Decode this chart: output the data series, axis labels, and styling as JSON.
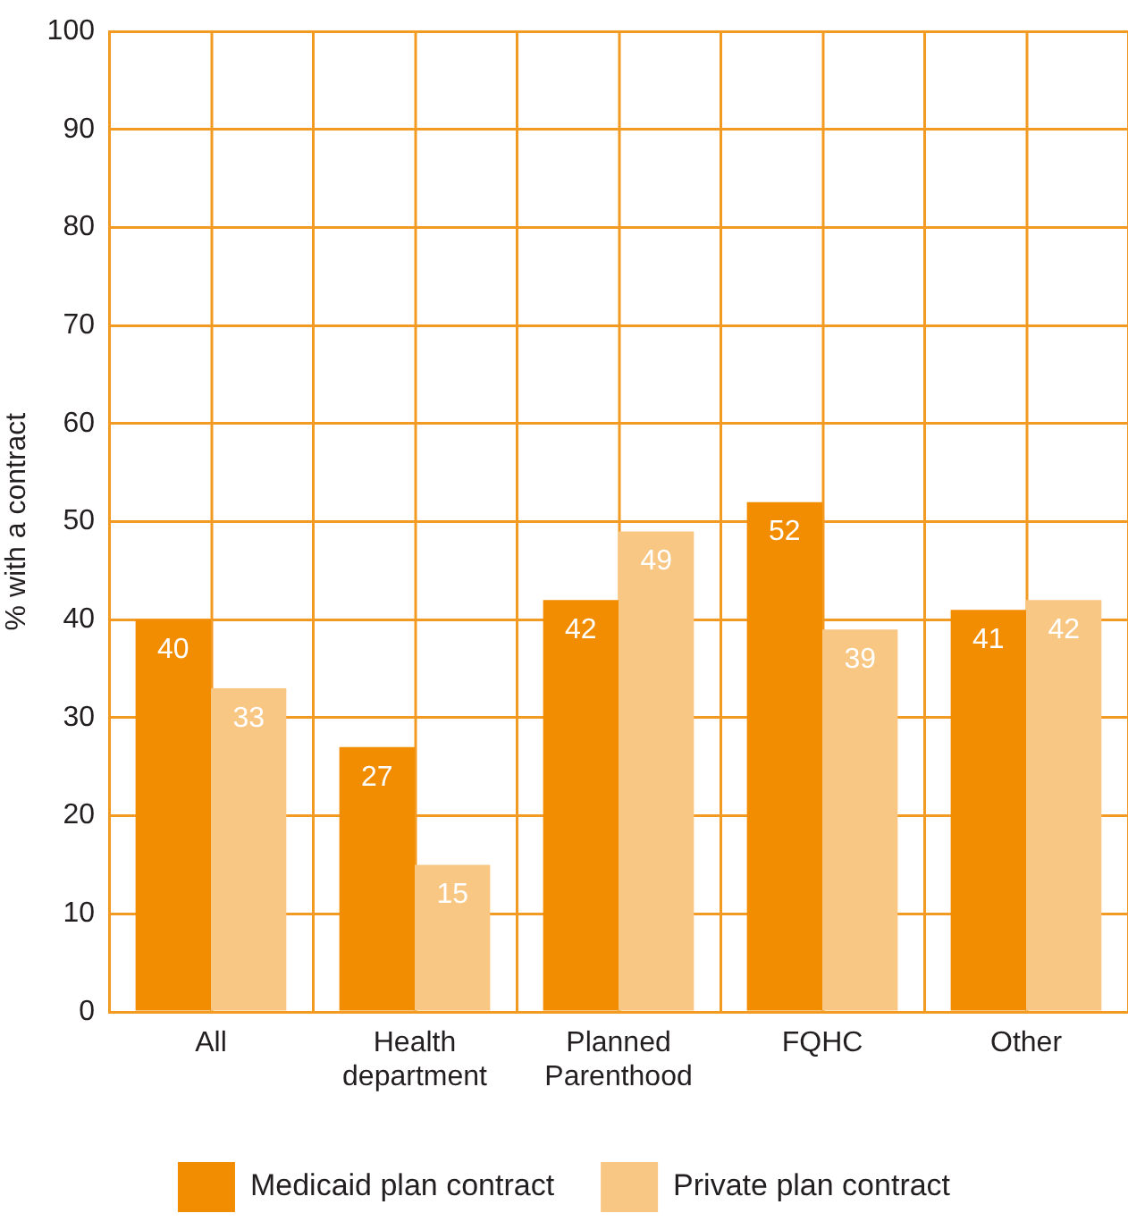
{
  "chart_data": {
    "type": "bar",
    "categories": [
      "All",
      "Health department",
      "Planned Parenthood",
      "FQHC",
      "Other"
    ],
    "series": [
      {
        "name": "Medicaid plan contract",
        "color": "#f28c00",
        "values": [
          40,
          27,
          42,
          52,
          41
        ]
      },
      {
        "name": "Private plan contract",
        "color": "#f9c784",
        "values": [
          33,
          15,
          49,
          39,
          42
        ]
      }
    ],
    "ylabel": "% with a contract",
    "ylim": [
      0,
      100
    ],
    "yticks": [
      0,
      10,
      20,
      30,
      40,
      50,
      60,
      70,
      80,
      90,
      100
    ],
    "grid": true,
    "legend": "bottom",
    "data_labels": true
  }
}
